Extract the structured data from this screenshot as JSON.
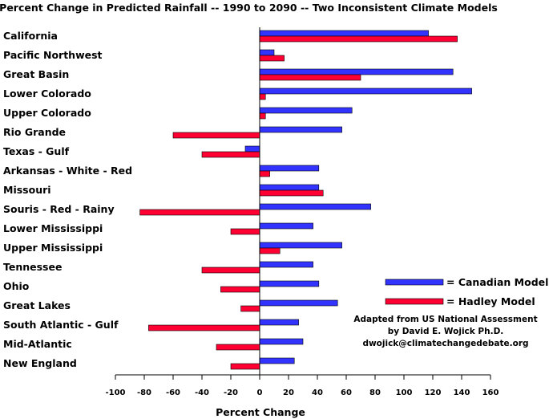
{
  "chart_data": {
    "type": "bar",
    "orientation": "horizontal",
    "title": "Percent Change in  Predicted Rainfall -- 1990 to 2090 -- Two Inconsistent Climate Models",
    "xlabel": "Percent Change",
    "ylabel": "",
    "xlim": [
      -100,
      160
    ],
    "xticks": [
      -100,
      -80,
      -60,
      -40,
      -20,
      0,
      20,
      40,
      60,
      80,
      100,
      120,
      140,
      160
    ],
    "categories": [
      "California",
      "Pacific Northwest",
      "Great Basin",
      "Lower Colorado",
      "Upper Colorado",
      "Rio Grande",
      "Texas - Gulf",
      "Arkansas - White - Red",
      "Missouri",
      "Souris - Red - Rainy",
      "Lower Mississippi",
      "Upper Mississippi",
      "Tennessee",
      "Ohio",
      "Great Lakes",
      "South Atlantic - Gulf",
      "Mid-Atlantic",
      "New England"
    ],
    "series": [
      {
        "name": "= Canadian Model",
        "color": "#3333ff",
        "values": [
          117,
          10,
          134,
          147,
          64,
          57,
          -10,
          41,
          41,
          77,
          37,
          57,
          37,
          41,
          54,
          27,
          30,
          24
        ]
      },
      {
        "name": "= Hadley Model",
        "color": "#ff0033",
        "values": [
          137,
          17,
          70,
          4,
          4,
          -60,
          -40,
          7,
          44,
          -83,
          -20,
          14,
          -40,
          -27,
          -13,
          -77,
          -30,
          -20
        ]
      }
    ],
    "legend_position": "right",
    "annotation": [
      "Adapted from US National Assessment",
      "by David E. Wojick Ph.D.",
      "dwojick@climatechangedebate.org"
    ]
  }
}
